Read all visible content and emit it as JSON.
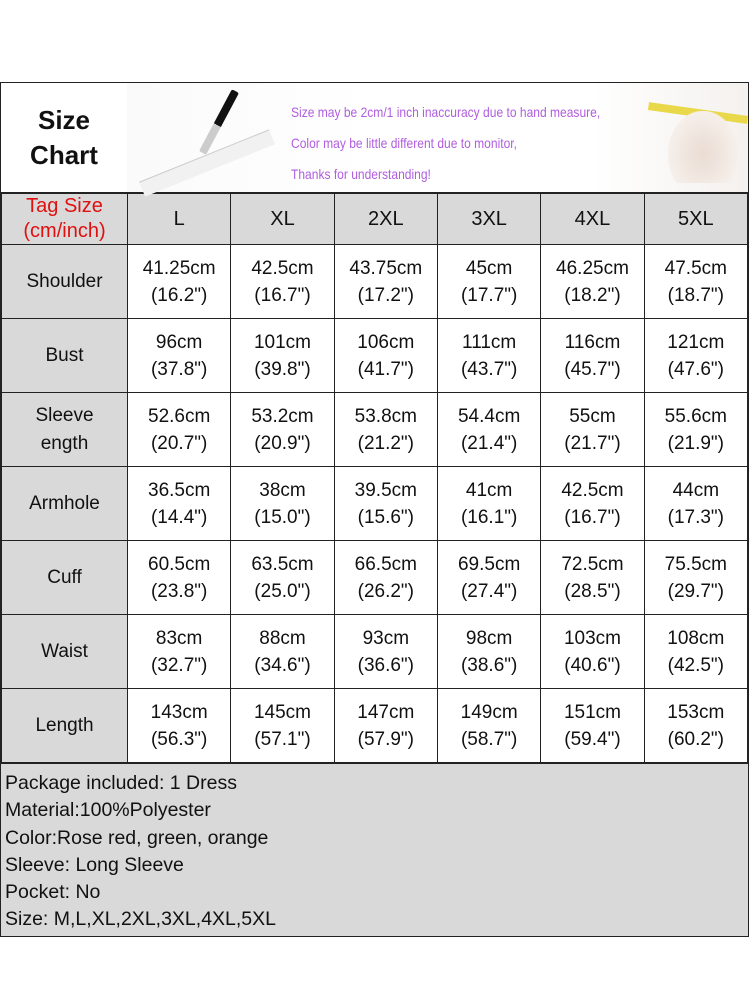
{
  "header": {
    "title_line1": "Size",
    "title_line2": "Chart",
    "notes": [
      "Size may be 2cm/1 inch inaccuracy due to hand measure,",
      "Color may be little different due to monitor,",
      "Thanks for understanding!"
    ],
    "notes_color": "#b05de0"
  },
  "table": {
    "tag_label_line1": "Tag Size",
    "tag_label_line2": "(cm/inch)",
    "tag_color": "#e01010",
    "sizes": [
      "L",
      "XL",
      "2XL",
      "3XL",
      "4XL",
      "5XL"
    ],
    "rows": [
      {
        "label": "Shoulder",
        "cm": [
          "41.25cm",
          "42.5cm",
          "43.75cm",
          "45cm",
          "46.25cm",
          "47.5cm"
        ],
        "inch": [
          "(16.2\")",
          "(16.7\")",
          "(17.2\")",
          "(17.7\")",
          "(18.2\")",
          "(18.7\")"
        ]
      },
      {
        "label": "Bust",
        "cm": [
          "96cm",
          "101cm",
          "106cm",
          "111cm",
          "116cm",
          "121cm"
        ],
        "inch": [
          "(37.8\")",
          "(39.8\")",
          "(41.7\")",
          "(43.7\")",
          "(45.7\")",
          "(47.6\")"
        ]
      },
      {
        "label": "Sleeve\nength",
        "cm": [
          "52.6cm",
          "53.2cm",
          "53.8cm",
          "54.4cm",
          "55cm",
          "55.6cm"
        ],
        "inch": [
          "(20.7\")",
          "(20.9\")",
          "(21.2\")",
          "(21.4\")",
          "(21.7\")",
          "(21.9\")"
        ]
      },
      {
        "label": "Armhole",
        "cm": [
          "36.5cm",
          "38cm",
          "39.5cm",
          "41cm",
          "42.5cm",
          "44cm"
        ],
        "inch": [
          "(14.4\")",
          "(15.0\")",
          "(15.6\")",
          "(16.1\")",
          "(16.7\")",
          "(17.3\")"
        ]
      },
      {
        "label": "Cuff",
        "cm": [
          "60.5cm",
          "63.5cm",
          "66.5cm",
          "69.5cm",
          "72.5cm",
          "75.5cm"
        ],
        "inch": [
          "(23.8\")",
          "(25.0\")",
          "(26.2\")",
          "(27.4\")",
          "(28.5\")",
          "(29.7\")"
        ]
      },
      {
        "label": "Waist",
        "cm": [
          "83cm",
          "88cm",
          "93cm",
          "98cm",
          "103cm",
          "108cm"
        ],
        "inch": [
          "(32.7\")",
          "(34.6\")",
          "(36.6\")",
          "(38.6\")",
          "(40.6\")",
          "(42.5\")"
        ]
      },
      {
        "label": "Length",
        "cm": [
          "143cm",
          "145cm",
          "147cm",
          "149cm",
          "151cm",
          "153cm"
        ],
        "inch": [
          "(56.3\")",
          "(57.1\")",
          "(57.9\")",
          "(58.7\")",
          "(59.4\")",
          "(60.2\")"
        ]
      }
    ]
  },
  "footer": [
    "Package included: 1 Dress",
    "Material:100%Polyester",
    "Color:Rose red, green, orange",
    "Sleeve: Long Sleeve",
    "Pocket: No",
    "Size: M,L,XL,2XL,3XL,4XL,5XL"
  ]
}
